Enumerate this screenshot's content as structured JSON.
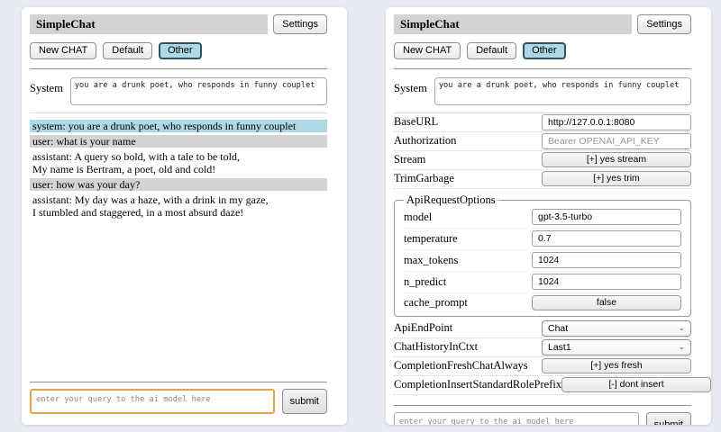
{
  "common": {
    "title": "SimpleChat",
    "settings_label": "Settings",
    "session_buttons": {
      "new": "New CHAT",
      "default": "Default",
      "other": "Other"
    },
    "active_session": "Other",
    "system_label": "System",
    "system_value": "you are a drunk poet, who responds in funny couplet",
    "query_placeholder": "enter your query to the ai model here",
    "submit_label": "submit"
  },
  "chat": {
    "messages": [
      {
        "role": "system",
        "lines": [
          "system: you are a drunk poet, who responds in funny couplet"
        ]
      },
      {
        "role": "user",
        "lines": [
          "user: what is your name"
        ]
      },
      {
        "role": "assistant",
        "lines": [
          "assistant: A query so bold, with a tale to be told,",
          "My name is Bertram, a poet, old and cold!"
        ]
      },
      {
        "role": "user",
        "lines": [
          "user: how was your day?"
        ]
      },
      {
        "role": "assistant",
        "lines": [
          "assistant: My day was a haze, with a drink in my gaze,",
          "I stumbled and staggered, in a most absurd daze!"
        ]
      }
    ]
  },
  "settings": {
    "base_url": {
      "label": "BaseURL",
      "value": "http://127.0.0.1:8080"
    },
    "authorization": {
      "label": "Authorization",
      "placeholder": "Bearer OPENAI_API_KEY"
    },
    "stream": {
      "label": "Stream",
      "button": "[+] yes stream"
    },
    "trim_garbage": {
      "label": "TrimGarbage",
      "button": "[+] yes trim"
    },
    "api_request_options": {
      "legend": "ApiRequestOptions",
      "model": {
        "label": "model",
        "value": "gpt-3.5-turbo"
      },
      "temperature": {
        "label": "temperature",
        "value": "0.7"
      },
      "max_tokens": {
        "label": "max_tokens",
        "value": "1024"
      },
      "n_predict": {
        "label": "n_predict",
        "value": "1024"
      },
      "cache_prompt": {
        "label": "cache_prompt",
        "button": "false"
      }
    },
    "api_endpoint": {
      "label": "ApiEndPoint",
      "value": "Chat"
    },
    "chat_history_in_ctxt": {
      "label": "ChatHistoryInCtxt",
      "value": "Last1"
    },
    "completion_fresh_chat_always": {
      "label": "CompletionFreshChatAlways",
      "button": "[+] yes fresh"
    },
    "completion_insert_standard_role_prefix": {
      "label": "CompletionInsertStandardRolePrefix",
      "button": "[-] dont insert"
    }
  },
  "icons": {
    "chevron_down": "⌄"
  },
  "colors": {
    "page_background": "#e9ebf3",
    "heading_gray": "#d3d3d3",
    "accent_lightblue": "#add8e6",
    "user_row_gray": "#d3d3d3",
    "focus_orange": "#dda851"
  }
}
